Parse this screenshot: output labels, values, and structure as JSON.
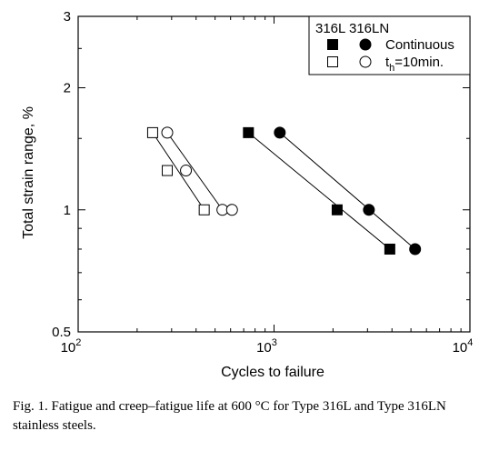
{
  "chart_data": {
    "type": "scatter",
    "xlabel": "Cycles to failure",
    "ylabel": "Total strain range, %",
    "x_scale": "log",
    "y_scale": "log",
    "xlim": [
      100,
      10000
    ],
    "ylim": [
      0.5,
      3
    ],
    "x_ticks": [
      {
        "value": 100,
        "base": "10",
        "exp": "2"
      },
      {
        "value": 1000,
        "base": "10",
        "exp": "3"
      },
      {
        "value": 10000,
        "base": "10",
        "exp": "4"
      }
    ],
    "y_ticks": [
      {
        "value": 0.5,
        "label": "0.5"
      },
      {
        "value": 1,
        "label": "1"
      },
      {
        "value": 2,
        "label": "2"
      },
      {
        "value": 3,
        "label": "3"
      }
    ],
    "legend": {
      "placement": "top-right",
      "header": "316L 316LN",
      "entries": [
        {
          "label": "Continuous",
          "base": "Continuous",
          "sub": ""
        },
        {
          "label": "th=10min.",
          "base": "t",
          "sub": "h",
          "rest": "=10min."
        }
      ]
    },
    "series": [
      {
        "material": "316L",
        "condition": "Continuous",
        "marker": "square",
        "filled": true,
        "points": [
          {
            "x": 740,
            "y": 1.55
          },
          {
            "x": 2100,
            "y": 1.0
          },
          {
            "x": 3900,
            "y": 0.8
          }
        ]
      },
      {
        "material": "316LN",
        "condition": "Continuous",
        "marker": "circle",
        "filled": true,
        "points": [
          {
            "x": 1070,
            "y": 1.55
          },
          {
            "x": 3050,
            "y": 1.0
          },
          {
            "x": 5250,
            "y": 0.8
          }
        ]
      },
      {
        "material": "316L",
        "condition": "th=10min.",
        "marker": "square",
        "filled": false,
        "points": [
          {
            "x": 240,
            "y": 1.55
          },
          {
            "x": 285,
            "y": 1.25
          },
          {
            "x": 440,
            "y": 1.0
          }
        ]
      },
      {
        "material": "316LN",
        "condition": "th=10min.",
        "marker": "circle",
        "filled": false,
        "points": [
          {
            "x": 285,
            "y": 1.55
          },
          {
            "x": 355,
            "y": 1.25
          },
          {
            "x": 545,
            "y": 1.0
          },
          {
            "x": 610,
            "y": 1.0
          }
        ]
      }
    ],
    "fit_lines": [
      {
        "from": {
          "x": 740,
          "y": 1.55
        },
        "to": {
          "x": 3900,
          "y": 0.8
        }
      },
      {
        "from": {
          "x": 1070,
          "y": 1.55
        },
        "to": {
          "x": 5250,
          "y": 0.8
        }
      },
      {
        "from": {
          "x": 240,
          "y": 1.55
        },
        "to": {
          "x": 440,
          "y": 1.0
        }
      },
      {
        "from": {
          "x": 285,
          "y": 1.55
        },
        "to": {
          "x": 545,
          "y": 1.0
        }
      }
    ]
  },
  "caption": "Fig. 1. Fatigue and creep–fatigue life at 600 °C for Type 316L and Type 316LN stainless steels."
}
